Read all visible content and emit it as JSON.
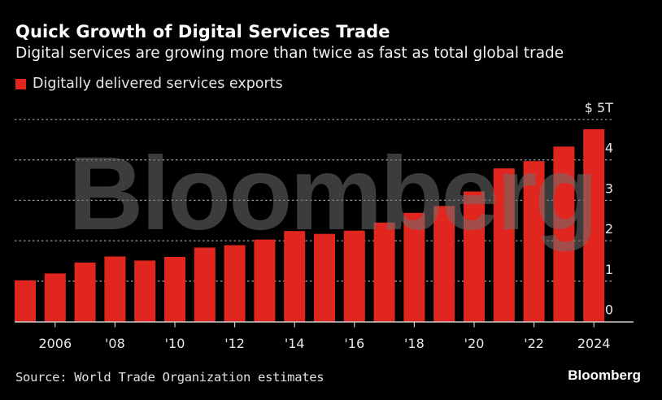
{
  "header": {
    "title": "Quick Growth of Digital Services Trade",
    "subtitle": "Digital services are growing more than twice as fast as total global trade"
  },
  "footer": {
    "source": "Source: World Trade Organization estimates",
    "brand": "Bloomberg"
  },
  "watermark": "Bloomberg",
  "colors": {
    "background": "#000000",
    "bar": "#e0261f",
    "gridline": "#9a9a9a",
    "axis": "#cccccc",
    "watermark": "#6e6e6e"
  },
  "chart_data": {
    "type": "bar",
    "title": "Quick Growth of Digital Services Trade",
    "subtitle": "Digital services are growing more than twice as fast as total global trade",
    "xlabel": "",
    "ylabel": "",
    "unit_label": "$ 5T",
    "ylim": [
      0,
      5
    ],
    "yticks": [
      0,
      1,
      2,
      3,
      4,
      5
    ],
    "ytick_labels": [
      "0",
      "1",
      "2",
      "3",
      "4",
      "$ 5T"
    ],
    "grid": true,
    "legend": {
      "position": "top-left",
      "entries": [
        "Digitally delivered services exports"
      ]
    },
    "categories": [
      "2005",
      "2006",
      "2007",
      "2008",
      "2009",
      "2010",
      "2011",
      "2012",
      "2013",
      "2014",
      "2015",
      "2016",
      "2017",
      "2018",
      "2019",
      "2020",
      "2021",
      "2022",
      "2023",
      "2024"
    ],
    "xtick_labels": [
      {
        "category": "2006",
        "label": "2006"
      },
      {
        "category": "2008",
        "label": "'08"
      },
      {
        "category": "2010",
        "label": "'10"
      },
      {
        "category": "2012",
        "label": "'12"
      },
      {
        "category": "2014",
        "label": "'14"
      },
      {
        "category": "2016",
        "label": "'16"
      },
      {
        "category": "2018",
        "label": "'18"
      },
      {
        "category": "2020",
        "label": "'20"
      },
      {
        "category": "2022",
        "label": "'22"
      },
      {
        "category": "2024",
        "label": "2024"
      }
    ],
    "series": [
      {
        "name": "Digitally delivered services exports",
        "values": [
          1.02,
          1.19,
          1.46,
          1.61,
          1.51,
          1.6,
          1.83,
          1.89,
          2.03,
          2.24,
          2.17,
          2.25,
          2.45,
          2.69,
          2.86,
          3.22,
          3.79,
          3.97,
          4.33,
          4.76
        ]
      }
    ]
  }
}
